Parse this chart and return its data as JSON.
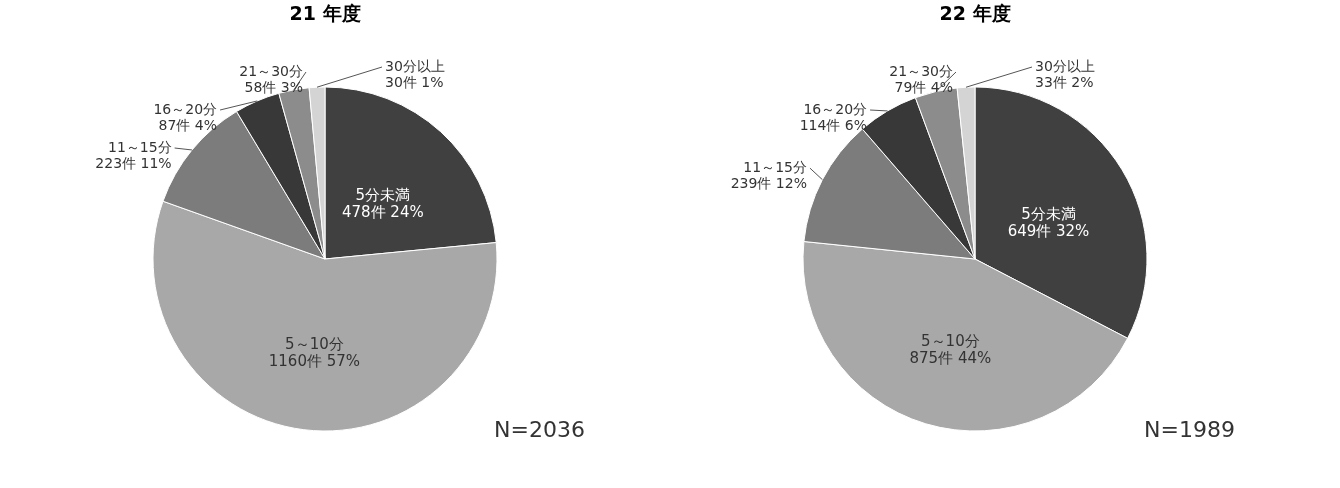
{
  "chart_data": [
    {
      "type": "pie",
      "title": "21 年度",
      "categories": [
        "5分未満",
        "5～10分",
        "11～15分",
        "16～20分",
        "21～30分",
        "30分以上"
      ],
      "values": [
        478,
        1160,
        223,
        87,
        58,
        30
      ],
      "value_labels": [
        "478件 24%",
        "1160件 57%",
        "223件 11%",
        "87件 4%",
        "58件 3%",
        "30件 1%"
      ],
      "colors": [
        "#404040",
        "#a8a8a8",
        "#7c7c7c",
        "#383838",
        "#8c8c8c",
        "#d4d4d4"
      ],
      "annotations": [
        "N=2036"
      ]
    },
    {
      "type": "pie",
      "title": "22 年度",
      "categories": [
        "5分未満",
        "5～10分",
        "11～15分",
        "16～20分",
        "21～30分",
        "30分以上"
      ],
      "values": [
        649,
        875,
        239,
        114,
        79,
        33
      ],
      "value_labels": [
        "649件 32%",
        "875件 44%",
        "239件 12%",
        "114件 6%",
        "79件 4%",
        "33件 2%"
      ],
      "colors": [
        "#404040",
        "#a8a8a8",
        "#7c7c7c",
        "#383838",
        "#8c8c8c",
        "#d4d4d4"
      ],
      "annotations": [
        "N=1989"
      ]
    }
  ]
}
